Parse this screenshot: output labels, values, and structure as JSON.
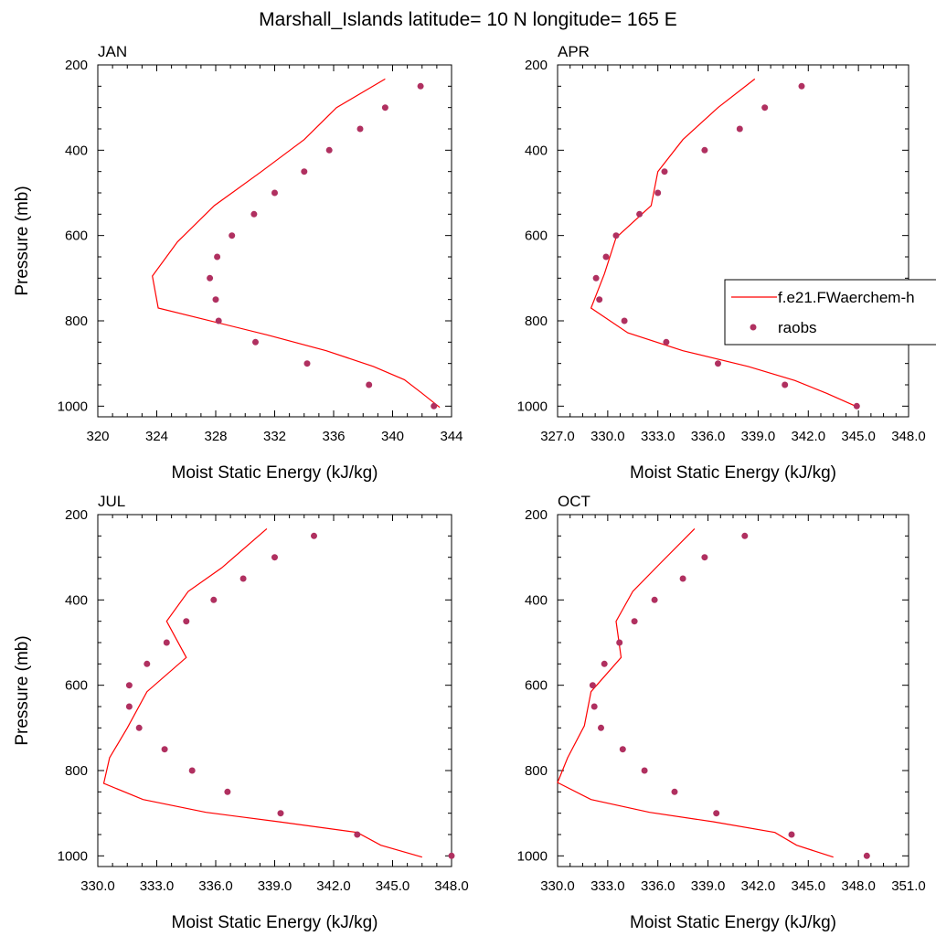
{
  "figure": {
    "title": "Marshall_Islands  latitude= 10 N longitude= 165 E"
  },
  "legend": {
    "model_label": "f.e21.FWaerchem-h",
    "obs_label": "raobs",
    "model_color": "#ff0000",
    "obs_color": "#b03060"
  },
  "chart_data": [
    {
      "type": "line",
      "title": "JAN",
      "xlabel": "Moist Static Energy (kJ/kg)",
      "ylabel": "Pressure (mb)",
      "xlim": [
        320,
        344
      ],
      "ylim": [
        200,
        1025
      ],
      "y_inverted": true,
      "xticks": [
        320,
        324,
        328,
        332,
        336,
        340,
        344
      ],
      "xtick_labels": [
        "320",
        "324",
        "328",
        "332",
        "336",
        "340",
        "344"
      ],
      "yticks": [
        200,
        400,
        600,
        800,
        1000
      ],
      "ytick_labels": [
        "200",
        "400",
        "600",
        "800",
        "1000"
      ],
      "series": [
        {
          "name": "f.e21.FWaerchem-h",
          "style": "line",
          "points": [
            [
              339.5,
              233
            ],
            [
              336.2,
              300
            ],
            [
              334.0,
              375
            ],
            [
              331.1,
              450
            ],
            [
              327.9,
              530
            ],
            [
              325.4,
              615
            ],
            [
              323.7,
              695
            ],
            [
              324.1,
              770
            ],
            [
              331.5,
              833
            ],
            [
              335.5,
              870
            ],
            [
              338.7,
              907
            ],
            [
              340.8,
              938
            ],
            [
              342.0,
              970
            ],
            [
              343.2,
              1003
            ]
          ]
        },
        {
          "name": "raobs",
          "style": "markers",
          "points": [
            [
              341.9,
              250
            ],
            [
              339.5,
              300
            ],
            [
              337.8,
              350
            ],
            [
              335.7,
              400
            ],
            [
              334.0,
              450
            ],
            [
              332.0,
              500
            ],
            [
              330.6,
              550
            ],
            [
              329.1,
              600
            ],
            [
              328.1,
              650
            ],
            [
              327.6,
              700
            ],
            [
              328.0,
              750
            ],
            [
              328.2,
              800
            ],
            [
              330.7,
              850
            ],
            [
              334.2,
              900
            ],
            [
              338.4,
              950
            ],
            [
              342.8,
              1000
            ]
          ]
        }
      ]
    },
    {
      "type": "line",
      "title": "APR",
      "xlabel": "Moist Static Energy (kJ/kg)",
      "ylabel": "",
      "xlim": [
        327,
        348
      ],
      "ylim": [
        200,
        1025
      ],
      "y_inverted": true,
      "xticks": [
        327,
        330,
        333,
        336,
        339,
        342,
        345,
        348
      ],
      "xtick_labels": [
        "327.0",
        "330.0",
        "333.0",
        "336.0",
        "339.0",
        "342.0",
        "345.0",
        "348.0"
      ],
      "yticks": [
        200,
        400,
        600,
        800,
        1000
      ],
      "ytick_labels": [
        "200",
        "400",
        "600",
        "800",
        "1000"
      ],
      "series": [
        {
          "name": "f.e21.FWaerchem-h",
          "style": "line",
          "points": [
            [
              338.8,
              233
            ],
            [
              336.6,
              300
            ],
            [
              334.5,
              375
            ],
            [
              333.0,
              450
            ],
            [
              332.6,
              530
            ],
            [
              330.5,
              605
            ],
            [
              329.8,
              690
            ],
            [
              329.0,
              770
            ],
            [
              331.2,
              828
            ],
            [
              334.5,
              870
            ],
            [
              338.4,
              907
            ],
            [
              341.2,
              940
            ],
            [
              343.1,
              970
            ],
            [
              345.0,
              1003
            ]
          ]
        },
        {
          "name": "raobs",
          "style": "markers",
          "points": [
            [
              341.6,
              250
            ],
            [
              339.4,
              300
            ],
            [
              337.9,
              350
            ],
            [
              335.8,
              400
            ],
            [
              333.4,
              450
            ],
            [
              333.0,
              500
            ],
            [
              331.9,
              550
            ],
            [
              330.5,
              600
            ],
            [
              329.9,
              650
            ],
            [
              329.3,
              700
            ],
            [
              329.5,
              750
            ],
            [
              331.0,
              800
            ],
            [
              333.5,
              850
            ],
            [
              336.6,
              900
            ],
            [
              340.6,
              950
            ],
            [
              344.9,
              1000
            ]
          ]
        }
      ]
    },
    {
      "type": "line",
      "title": "JUL",
      "xlabel": "Moist Static Energy (kJ/kg)",
      "ylabel": "Pressure (mb)",
      "xlim": [
        330,
        348
      ],
      "ylim": [
        200,
        1025
      ],
      "y_inverted": true,
      "xticks": [
        330,
        333,
        336,
        339,
        342,
        345,
        348
      ],
      "xtick_labels": [
        "330.0",
        "333.0",
        "336.0",
        "339.0",
        "342.0",
        "345.0",
        "348.0"
      ],
      "yticks": [
        200,
        400,
        600,
        800,
        1000
      ],
      "ytick_labels": [
        "200",
        "400",
        "600",
        "800",
        "1000"
      ],
      "series": [
        {
          "name": "f.e21.FWaerchem-h",
          "style": "line",
          "points": [
            [
              338.6,
              233
            ],
            [
              336.3,
              325
            ],
            [
              334.6,
              380
            ],
            [
              333.5,
              450
            ],
            [
              334.5,
              535
            ],
            [
              332.5,
              615
            ],
            [
              331.5,
              700
            ],
            [
              330.6,
              770
            ],
            [
              330.3,
              830
            ],
            [
              332.3,
              868
            ],
            [
              335.5,
              898
            ],
            [
              339.2,
              920
            ],
            [
              343.2,
              945
            ],
            [
              344.4,
              975
            ],
            [
              346.5,
              1003
            ]
          ]
        },
        {
          "name": "raobs",
          "style": "markers",
          "points": [
            [
              341.0,
              250
            ],
            [
              339.0,
              300
            ],
            [
              337.4,
              350
            ],
            [
              335.9,
              400
            ],
            [
              334.5,
              450
            ],
            [
              333.5,
              500
            ],
            [
              332.5,
              550
            ],
            [
              331.6,
              600
            ],
            [
              331.6,
              650
            ],
            [
              332.1,
              700
            ],
            [
              333.4,
              750
            ],
            [
              334.8,
              800
            ],
            [
              336.6,
              850
            ],
            [
              339.3,
              900
            ],
            [
              343.2,
              950
            ],
            [
              348.0,
              1000
            ]
          ]
        }
      ]
    },
    {
      "type": "line",
      "title": "OCT",
      "xlabel": "Moist Static Energy (kJ/kg)",
      "ylabel": "",
      "xlim": [
        330,
        351
      ],
      "ylim": [
        200,
        1025
      ],
      "y_inverted": true,
      "xticks": [
        330,
        333,
        336,
        339,
        342,
        345,
        348,
        351
      ],
      "xtick_labels": [
        "330.0",
        "333.0",
        "336.0",
        "339.0",
        "342.0",
        "345.0",
        "348.0",
        "351.0"
      ],
      "yticks": [
        200,
        400,
        600,
        800,
        1000
      ],
      "ytick_labels": [
        "200",
        "400",
        "600",
        "800",
        "1000"
      ],
      "series": [
        {
          "name": "f.e21.FWaerchem-h",
          "style": "line",
          "points": [
            [
              338.2,
              233
            ],
            [
              336.0,
              320
            ],
            [
              334.5,
              380
            ],
            [
              333.5,
              450
            ],
            [
              333.8,
              535
            ],
            [
              332.0,
              615
            ],
            [
              331.6,
              695
            ],
            [
              330.6,
              770
            ],
            [
              330.0,
              828
            ],
            [
              332.0,
              868
            ],
            [
              335.5,
              898
            ],
            [
              339.3,
              920
            ],
            [
              343.0,
              945
            ],
            [
              344.3,
              975
            ],
            [
              346.5,
              1003
            ]
          ]
        },
        {
          "name": "raobs",
          "style": "markers",
          "points": [
            [
              341.2,
              250
            ],
            [
              338.8,
              300
            ],
            [
              337.5,
              350
            ],
            [
              335.8,
              400
            ],
            [
              334.6,
              450
            ],
            [
              333.7,
              500
            ],
            [
              332.8,
              550
            ],
            [
              332.1,
              600
            ],
            [
              332.2,
              650
            ],
            [
              332.6,
              700
            ],
            [
              333.9,
              750
            ],
            [
              335.2,
              800
            ],
            [
              337.0,
              850
            ],
            [
              339.5,
              900
            ],
            [
              344.0,
              950
            ],
            [
              348.5,
              1000
            ]
          ]
        }
      ]
    }
  ]
}
